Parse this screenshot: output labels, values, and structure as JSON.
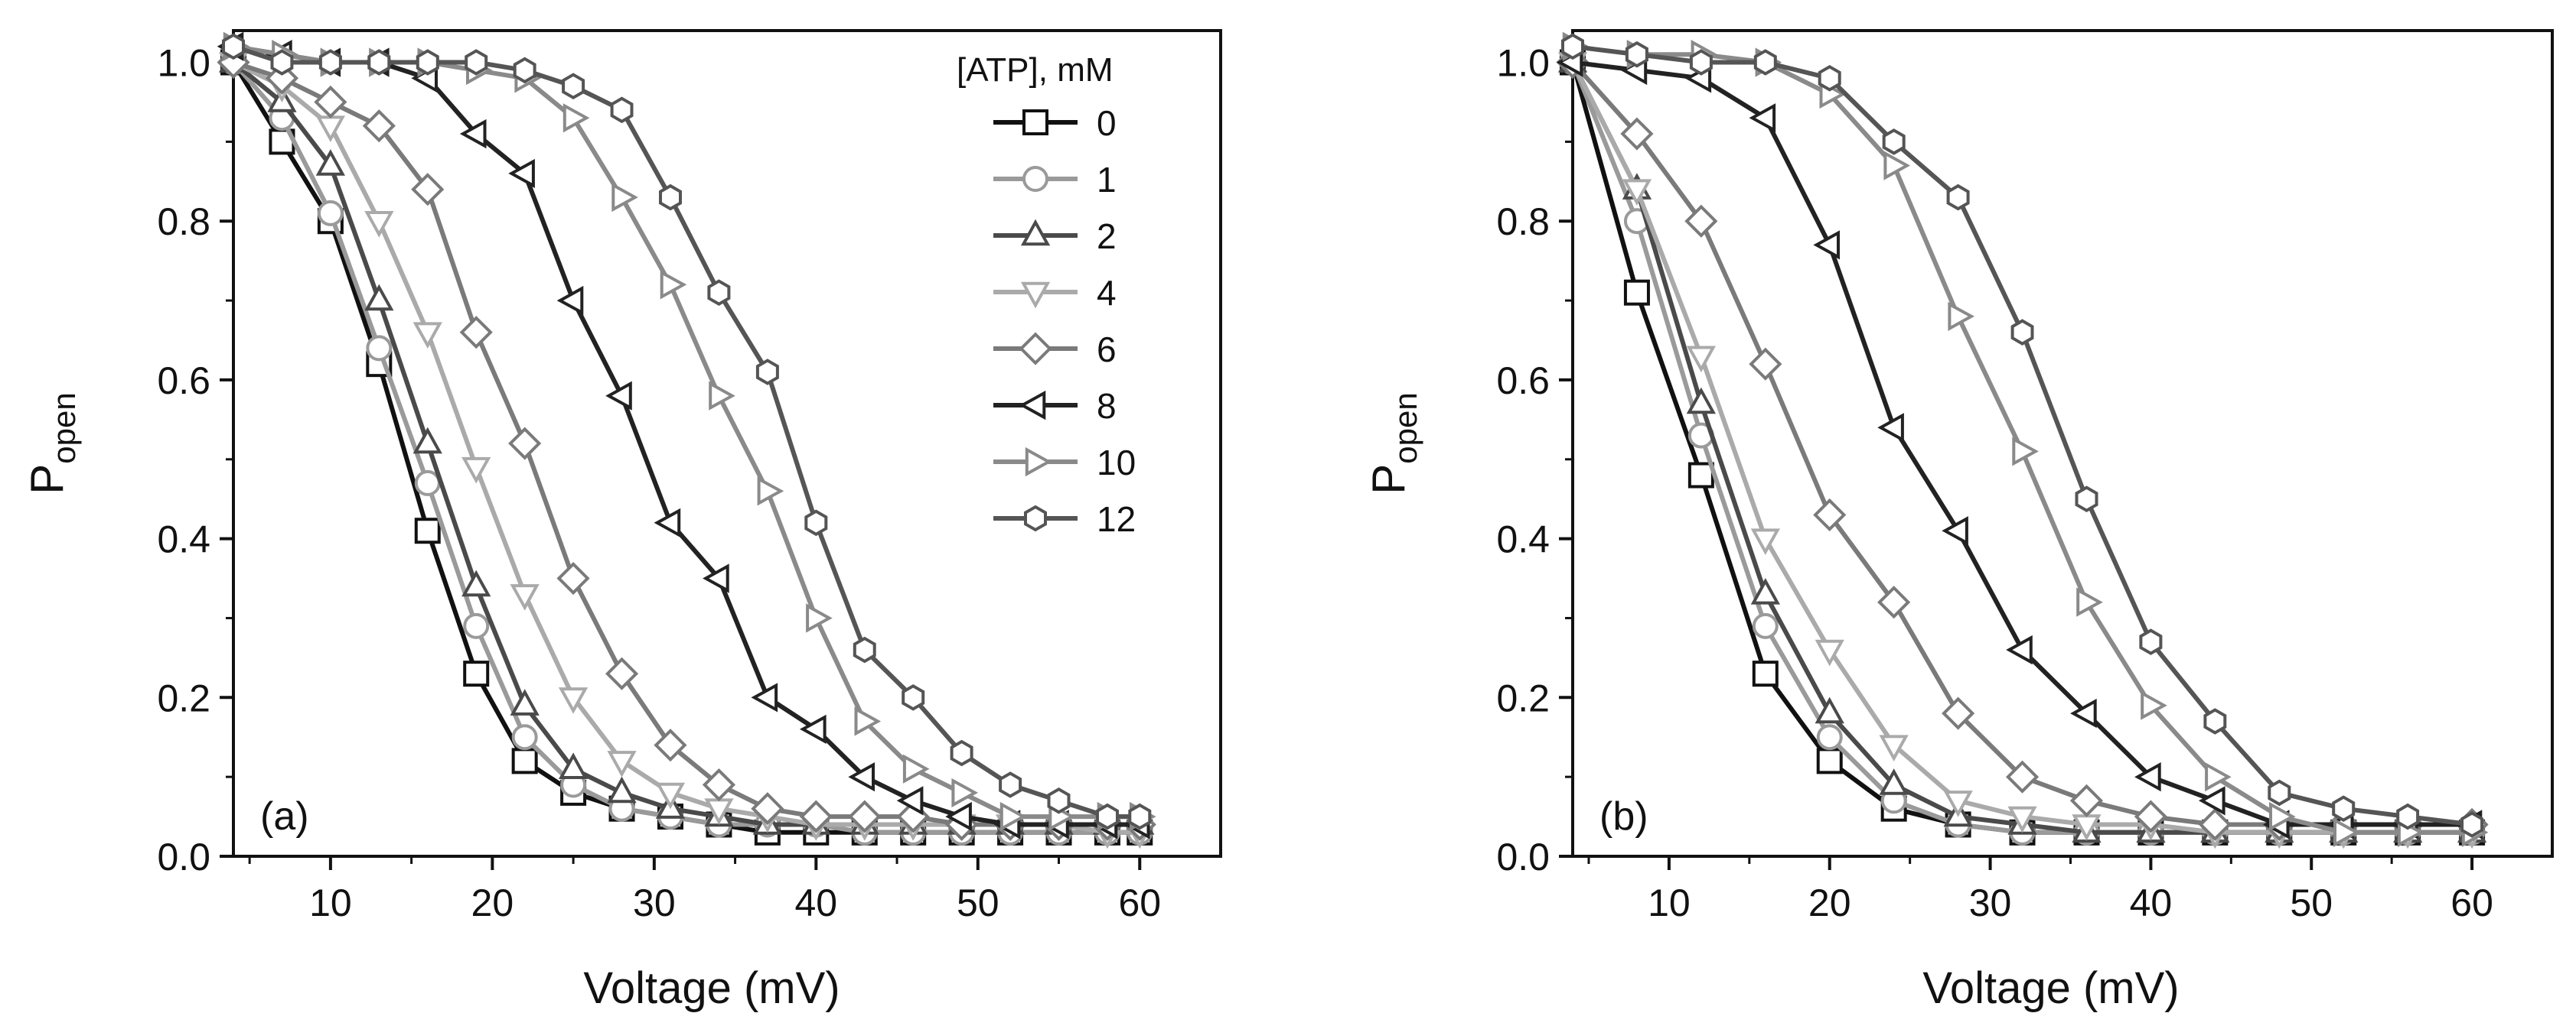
{
  "chart_data": [
    {
      "type": "line",
      "panel_label": "(a)",
      "title": "",
      "xlabel": "Voltage (mV)",
      "ylabel_main": "P",
      "ylabel_sub": "open",
      "xlim": [
        4,
        65
      ],
      "ylim": [
        0,
        1.04
      ],
      "xticks": [
        10,
        20,
        30,
        40,
        50,
        60
      ],
      "xtick_labels": [
        "10",
        "20",
        "30",
        "40",
        "50",
        "60"
      ],
      "yticks": [
        0,
        0.2,
        0.4,
        0.6,
        0.8,
        1.0
      ],
      "ytick_labels": [
        "0.0",
        "0.2",
        "0.4",
        "0.6",
        "0.8",
        "1.0"
      ],
      "grid": false,
      "legend": {
        "title": "[ATP], mM",
        "position": "top-right"
      },
      "series": [
        {
          "name": "0",
          "marker": "square",
          "color": "#111111",
          "x": [
            4,
            7,
            10,
            13,
            16,
            19,
            22,
            25,
            28,
            31,
            34,
            37,
            40,
            43,
            46,
            49,
            52,
            55,
            58,
            60
          ],
          "y": [
            1.0,
            0.9,
            0.8,
            0.62,
            0.41,
            0.23,
            0.12,
            0.08,
            0.06,
            0.05,
            0.04,
            0.03,
            0.03,
            0.03,
            0.03,
            0.03,
            0.03,
            0.03,
            0.03,
            0.03
          ]
        },
        {
          "name": "1",
          "marker": "circle",
          "color": "#9a9a9a",
          "x": [
            4,
            7,
            10,
            13,
            16,
            19,
            22,
            25,
            28,
            31,
            34,
            37,
            40,
            43,
            46,
            49,
            52,
            55,
            58,
            60
          ],
          "y": [
            1.0,
            0.93,
            0.81,
            0.64,
            0.47,
            0.29,
            0.15,
            0.09,
            0.06,
            0.05,
            0.04,
            0.04,
            0.04,
            0.03,
            0.03,
            0.03,
            0.03,
            0.03,
            0.03,
            0.03
          ]
        },
        {
          "name": "2",
          "marker": "triangle-up",
          "color": "#4a4a4a",
          "x": [
            4,
            7,
            10,
            13,
            16,
            19,
            22,
            25,
            28,
            31,
            34,
            37,
            40,
            43,
            46,
            49,
            52,
            55,
            58,
            60
          ],
          "y": [
            1.0,
            0.95,
            0.87,
            0.7,
            0.52,
            0.34,
            0.19,
            0.11,
            0.08,
            0.06,
            0.05,
            0.04,
            0.04,
            0.04,
            0.04,
            0.04,
            0.04,
            0.04,
            0.04,
            0.04
          ]
        },
        {
          "name": "4",
          "marker": "triangle-down",
          "color": "#aaaaaa",
          "x": [
            4,
            7,
            10,
            13,
            16,
            19,
            22,
            25,
            28,
            31,
            34,
            37,
            40,
            43,
            46,
            49,
            52,
            55,
            58,
            60
          ],
          "y": [
            1.0,
            0.97,
            0.92,
            0.8,
            0.66,
            0.49,
            0.33,
            0.2,
            0.12,
            0.08,
            0.06,
            0.05,
            0.04,
            0.04,
            0.04,
            0.04,
            0.04,
            0.04,
            0.03,
            0.03
          ]
        },
        {
          "name": "6",
          "marker": "diamond",
          "color": "#7a7a7a",
          "x": [
            4,
            7,
            10,
            13,
            16,
            19,
            22,
            25,
            28,
            31,
            34,
            37,
            40,
            43,
            46,
            49,
            52,
            55,
            58,
            60
          ],
          "y": [
            1.0,
            0.98,
            0.95,
            0.92,
            0.84,
            0.66,
            0.52,
            0.35,
            0.23,
            0.14,
            0.09,
            0.06,
            0.05,
            0.05,
            0.05,
            0.04,
            0.04,
            0.04,
            0.04,
            0.04
          ]
        },
        {
          "name": "8",
          "marker": "triangle-left",
          "color": "#222222",
          "x": [
            4,
            7,
            10,
            13,
            16,
            19,
            22,
            25,
            28,
            31,
            34,
            37,
            40,
            43,
            46,
            49,
            52,
            55,
            58,
            60
          ],
          "y": [
            1.02,
            1.01,
            1.0,
            1.0,
            0.98,
            0.91,
            0.86,
            0.7,
            0.58,
            0.42,
            0.35,
            0.2,
            0.16,
            0.1,
            0.07,
            0.05,
            0.04,
            0.04,
            0.04,
            0.04
          ]
        },
        {
          "name": "10",
          "marker": "triangle-right",
          "color": "#8a8a8a",
          "x": [
            4,
            7,
            10,
            13,
            16,
            19,
            22,
            25,
            28,
            31,
            34,
            37,
            40,
            43,
            46,
            49,
            52,
            55,
            58,
            60
          ],
          "y": [
            1.02,
            1.01,
            1.0,
            1.0,
            1.0,
            0.99,
            0.98,
            0.93,
            0.83,
            0.72,
            0.58,
            0.46,
            0.3,
            0.17,
            0.11,
            0.08,
            0.05,
            0.05,
            0.05,
            0.05
          ]
        },
        {
          "name": "12",
          "marker": "hexagon",
          "color": "#555555",
          "x": [
            4,
            7,
            10,
            13,
            16,
            19,
            22,
            25,
            28,
            31,
            34,
            37,
            40,
            43,
            46,
            49,
            52,
            55,
            58,
            60
          ],
          "y": [
            1.02,
            1.0,
            1.0,
            1.0,
            1.0,
            1.0,
            0.99,
            0.97,
            0.94,
            0.83,
            0.71,
            0.61,
            0.42,
            0.26,
            0.2,
            0.13,
            0.09,
            0.07,
            0.05,
            0.05
          ]
        }
      ]
    },
    {
      "type": "line",
      "panel_label": "(b)",
      "title": "",
      "xlabel": "Voltage (mV)",
      "ylabel_main": "P",
      "ylabel_sub": "open",
      "xlim": [
        4,
        65
      ],
      "ylim": [
        0,
        1.04
      ],
      "xticks": [
        10,
        20,
        30,
        40,
        50,
        60
      ],
      "xtick_labels": [
        "10",
        "20",
        "30",
        "40",
        "50",
        "60"
      ],
      "yticks": [
        0,
        0.2,
        0.4,
        0.6,
        0.8,
        1.0
      ],
      "ytick_labels": [
        "0.0",
        "0.2",
        "0.4",
        "0.6",
        "0.8",
        "1.0"
      ],
      "grid": false,
      "series": [
        {
          "name": "0",
          "marker": "square",
          "color": "#111111",
          "x": [
            4,
            8,
            12,
            16,
            20,
            24,
            28,
            32,
            36,
            40,
            44,
            48,
            52,
            56,
            60
          ],
          "y": [
            1.0,
            0.71,
            0.48,
            0.23,
            0.12,
            0.06,
            0.04,
            0.03,
            0.03,
            0.03,
            0.03,
            0.03,
            0.03,
            0.03,
            0.03
          ]
        },
        {
          "name": "1",
          "marker": "circle",
          "color": "#9a9a9a",
          "x": [
            4,
            8,
            12,
            16,
            20,
            24,
            28,
            32,
            36,
            40,
            44,
            48,
            52,
            56,
            60
          ],
          "y": [
            1.0,
            0.8,
            0.53,
            0.29,
            0.15,
            0.07,
            0.04,
            0.03,
            0.03,
            0.03,
            0.03,
            0.03,
            0.03,
            0.03,
            0.03
          ]
        },
        {
          "name": "2",
          "marker": "triangle-up",
          "color": "#4a4a4a",
          "x": [
            4,
            8,
            12,
            16,
            20,
            24,
            28,
            32,
            36,
            40,
            44,
            48,
            52,
            56,
            60
          ],
          "y": [
            1.0,
            0.84,
            0.57,
            0.33,
            0.18,
            0.09,
            0.05,
            0.04,
            0.03,
            0.03,
            0.03,
            0.03,
            0.03,
            0.03,
            0.03
          ]
        },
        {
          "name": "4",
          "marker": "triangle-down",
          "color": "#aaaaaa",
          "x": [
            4,
            8,
            12,
            16,
            20,
            24,
            28,
            32,
            36,
            40,
            44,
            48,
            52,
            56,
            60
          ],
          "y": [
            1.0,
            0.84,
            0.63,
            0.4,
            0.26,
            0.14,
            0.07,
            0.05,
            0.04,
            0.04,
            0.03,
            0.03,
            0.03,
            0.03,
            0.03
          ]
        },
        {
          "name": "6",
          "marker": "diamond",
          "color": "#7a7a7a",
          "x": [
            4,
            8,
            12,
            16,
            20,
            24,
            28,
            32,
            36,
            40,
            44,
            48,
            52,
            56,
            60
          ],
          "y": [
            1.0,
            0.91,
            0.8,
            0.62,
            0.43,
            0.32,
            0.18,
            0.1,
            0.07,
            0.05,
            0.04,
            0.04,
            0.04,
            0.04,
            0.04
          ]
        },
        {
          "name": "8",
          "marker": "triangle-left",
          "color": "#222222",
          "x": [
            4,
            8,
            12,
            16,
            20,
            24,
            28,
            32,
            36,
            40,
            44,
            48,
            52,
            56,
            60
          ],
          "y": [
            1.0,
            0.99,
            0.98,
            0.93,
            0.77,
            0.54,
            0.41,
            0.26,
            0.18,
            0.1,
            0.07,
            0.04,
            0.04,
            0.04,
            0.04
          ]
        },
        {
          "name": "10",
          "marker": "triangle-right",
          "color": "#8a8a8a",
          "x": [
            4,
            8,
            12,
            16,
            20,
            24,
            28,
            32,
            36,
            40,
            44,
            48,
            52,
            56,
            60
          ],
          "y": [
            1.02,
            1.01,
            1.01,
            1.0,
            0.96,
            0.87,
            0.68,
            0.51,
            0.32,
            0.19,
            0.1,
            0.05,
            0.03,
            0.03,
            0.03
          ]
        },
        {
          "name": "12",
          "marker": "hexagon",
          "color": "#555555",
          "x": [
            4,
            8,
            12,
            16,
            20,
            24,
            28,
            32,
            36,
            40,
            44,
            48,
            52,
            56,
            60
          ],
          "y": [
            1.02,
            1.01,
            1.0,
            1.0,
            0.98,
            0.9,
            0.83,
            0.66,
            0.45,
            0.27,
            0.17,
            0.08,
            0.06,
            0.05,
            0.04
          ]
        }
      ]
    }
  ]
}
